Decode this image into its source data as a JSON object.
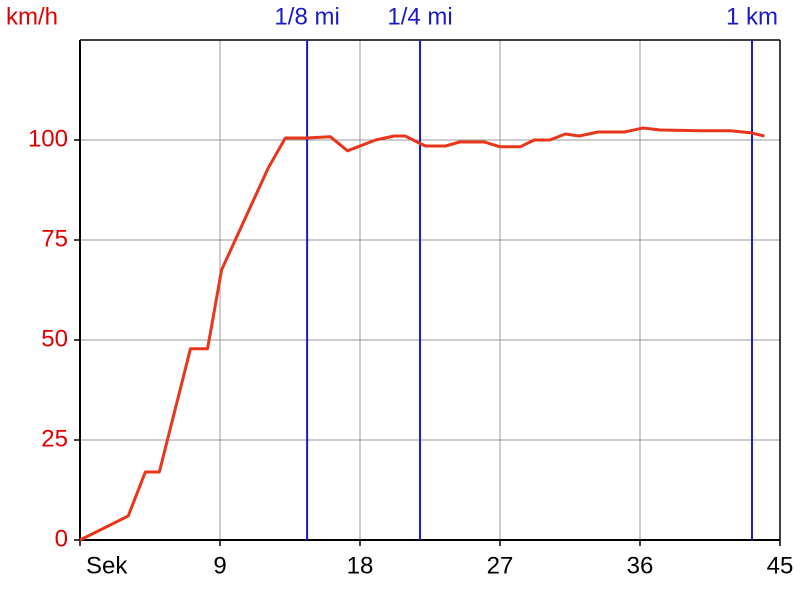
{
  "chart_data": {
    "type": "line",
    "y_label": "km/h",
    "x": [
      0,
      1.3,
      3.1,
      4.2,
      5.1,
      7.1,
      8.2,
      9.1,
      12.1,
      13.2,
      14.5,
      16.1,
      17.2,
      19,
      20.2,
      20.9,
      22.2,
      23.5,
      24.4,
      26,
      27,
      28.3,
      29.2,
      30.2,
      31.2,
      32.1,
      33.3,
      35,
      36.2,
      37.3,
      39.9,
      41.8,
      43.1,
      44
    ],
    "series": [
      {
        "name": "km/h",
        "color": "#e8361c",
        "values": [
          0,
          2.5,
          6,
          17,
          17,
          47.8,
          47.8,
          67.5,
          93,
          100.5,
          100.5,
          100.8,
          97.3,
          100,
          101,
          101,
          98.5,
          98.5,
          99.5,
          99.5,
          98.3,
          98.3,
          100,
          100,
          101.5,
          101,
          102,
          102,
          103,
          102.5,
          102.3,
          102.3,
          101.8,
          101
        ]
      }
    ],
    "xlim": [
      0,
      45
    ],
    "ylim": [
      0,
      125
    ],
    "xticks": [
      {
        "value": 0,
        "label": "Sek"
      },
      9,
      18,
      27,
      36,
      45
    ],
    "yticks": [
      0,
      25,
      50,
      75,
      100
    ],
    "grid": true,
    "markers": [
      {
        "x": 14.6,
        "label": "1/8 mi"
      },
      {
        "x": 21.86,
        "label": "1/4 mi"
      },
      {
        "x": 43.2,
        "label": "1 km"
      }
    ],
    "marker_color": "#1a1ac8",
    "label_color": "#e00000"
  }
}
